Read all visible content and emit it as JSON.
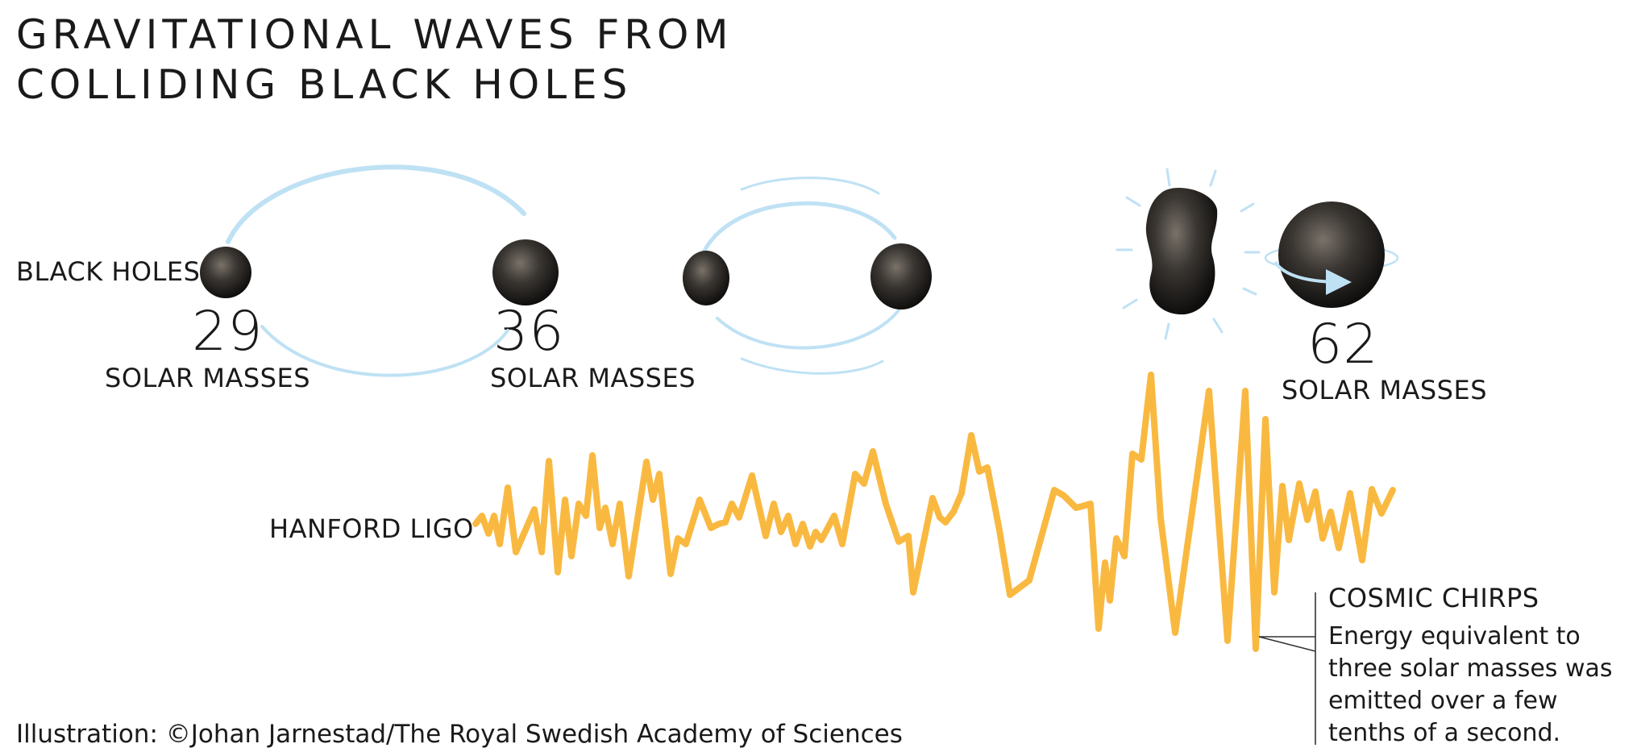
{
  "title_line1": "GRAVITATIONAL WAVES FROM",
  "title_line2": "COLLIDING BLACK HOLES",
  "black_holes_label": "BLACK HOLES",
  "bh1": {
    "mass": "29",
    "unit": "SOLAR MASSES"
  },
  "bh2": {
    "mass": "36",
    "unit": "SOLAR MASSES"
  },
  "merged": {
    "mass": "62",
    "unit": "SOLAR MASSES"
  },
  "detector_label": "HANFORD LIGO",
  "annotation": {
    "heading": "COSMIC CHIRPS",
    "body": "Energy equivalent to three solar masses was emitted over a few tenths of a second."
  },
  "credit": "Illustration: ©Johan Jarnestad/The Royal Swedish Academy of Sciences",
  "colors": {
    "wave": "#F9B941",
    "orbit": "#BFE1F4",
    "black_hole": "#1c1b1a",
    "text": "#1a1a1a"
  }
}
